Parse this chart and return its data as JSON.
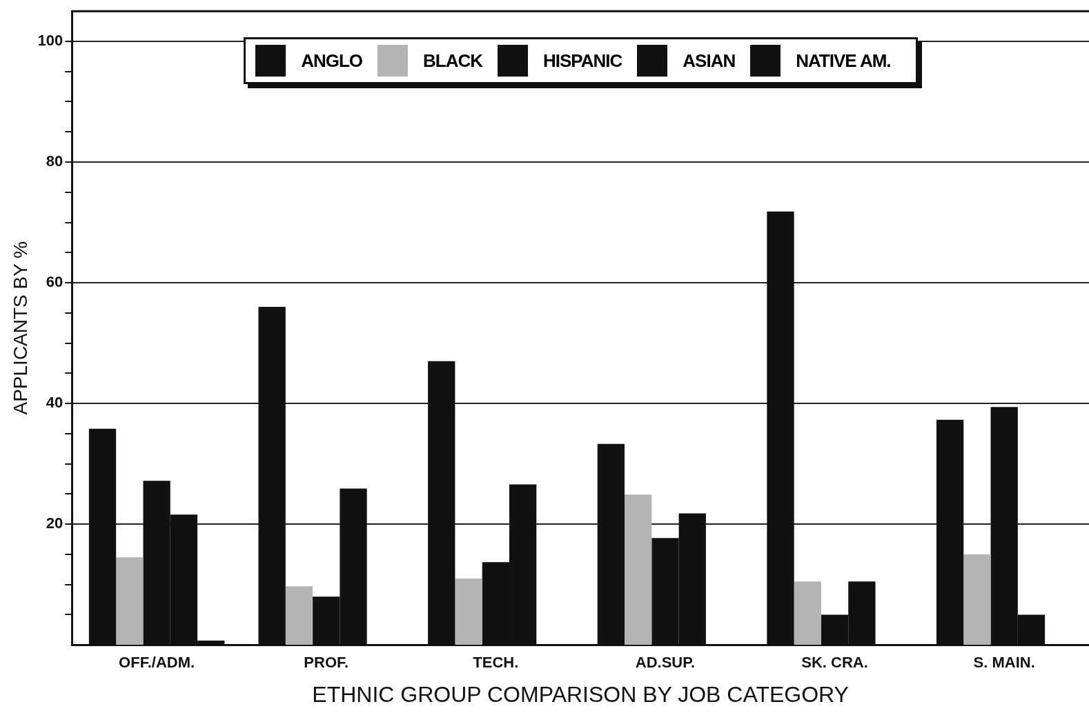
{
  "chart_data": {
    "type": "bar",
    "xlabel": "ETHNIC GROUP COMPARISON BY JOB CATEGORY",
    "ylabel": "APPLICANTS BY %",
    "categories": [
      "OFF./ADM.",
      "PROF.",
      "TECH.",
      "AD.SUP.",
      "SK. CRA.",
      "S. MAIN."
    ],
    "series": [
      {
        "name": "ANGLO",
        "color": "#111111",
        "values": [
          35.8,
          56,
          47,
          33.3,
          71.8,
          37.3
        ]
      },
      {
        "name": "BLACK",
        "color": "#b4b4b4",
        "values": [
          14.5,
          9.7,
          11,
          24.9,
          10.5,
          15
        ]
      },
      {
        "name": "HISPANIC",
        "color": "#111111",
        "values": [
          27.2,
          8,
          13.7,
          17.7,
          5,
          39.4
        ]
      },
      {
        "name": "ASIAN",
        "color": "#111111",
        "values": [
          21.6,
          25.9,
          26.6,
          21.8,
          10.5,
          5
        ]
      },
      {
        "name": "NATIVE AM.",
        "color": "#111111",
        "values": [
          0.7,
          0,
          0,
          0,
          0,
          0
        ]
      }
    ],
    "ylim": [
      0,
      105
    ],
    "yticks": [
      {
        "value": 5,
        "label": null
      },
      {
        "value": 10,
        "label": null
      },
      {
        "value": 15,
        "label": null
      },
      20,
      {
        "value": 25,
        "label": null
      },
      {
        "value": 30,
        "label": null
      },
      {
        "value": 35,
        "label": null
      },
      40,
      {
        "value": 45,
        "label": null
      },
      {
        "value": 50,
        "label": null
      },
      {
        "value": 55,
        "label": null
      },
      60,
      {
        "value": 65,
        "label": null
      },
      {
        "value": 70,
        "label": null
      },
      {
        "value": 75,
        "label": null
      },
      80,
      {
        "value": 85,
        "label": null
      },
      {
        "value": 90,
        "label": null
      },
      {
        "value": 95,
        "label": null
      },
      100
    ],
    "grid": "y",
    "legend": "top"
  }
}
